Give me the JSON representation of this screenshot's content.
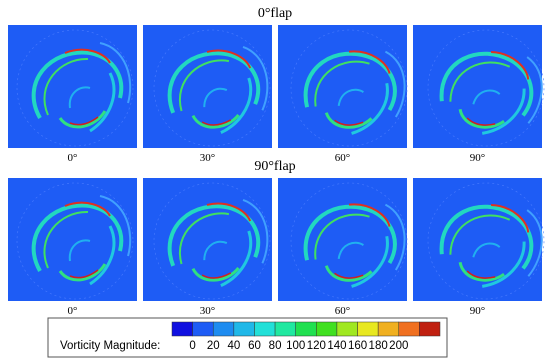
{
  "rows": [
    {
      "title": "0°flap",
      "panels": [
        "0°",
        "30°",
        "60°",
        "90°"
      ]
    },
    {
      "title": "90°flap",
      "panels": [
        "0°",
        "30°",
        "60°",
        "90°"
      ]
    }
  ],
  "colorbar": {
    "label": "Vorticity Magnitude:",
    "ticks": [
      0,
      20,
      40,
      60,
      80,
      100,
      120,
      140,
      160,
      180,
      200
    ],
    "colors": [
      "#1010e0",
      "#1e5cf5",
      "#1e8cf0",
      "#20b8e8",
      "#22e0d8",
      "#20e8a0",
      "#20e050",
      "#40e020",
      "#a0e820",
      "#e8e820",
      "#f0b020",
      "#f07020",
      "#c02010"
    ]
  }
}
